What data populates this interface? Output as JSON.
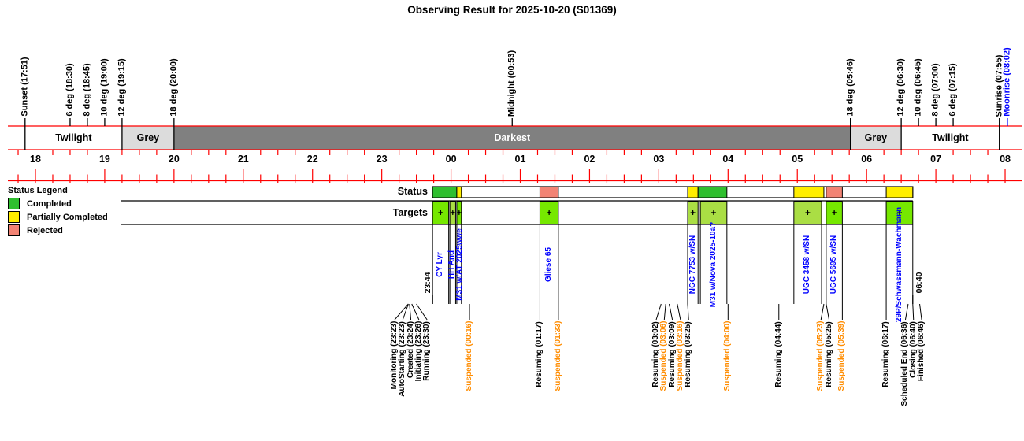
{
  "title": "Observing Result for 2025-10-20 (S01369)",
  "legend": {
    "title": "Status Legend",
    "items": [
      {
        "label": "Completed",
        "kind": "completed"
      },
      {
        "label": "Partially Completed",
        "kind": "partial"
      },
      {
        "label": "Rejected",
        "kind": "rejected"
      }
    ]
  },
  "rows": {
    "status": "Status",
    "targets": "Targets"
  },
  "colors": {
    "axis_red": "#ff0000",
    "band_dark": "#808080",
    "band_grey": "#dcdcdc",
    "band_dark_text": "#ffffff",
    "completed": "#2fbf2f",
    "partial": "#ffee00",
    "rejected": "#f28374",
    "target_bright": "#76e800",
    "target_light": "#aade44",
    "event_info": "#000000",
    "event_warn": "#ff8c00",
    "target_name_blue": "#0000ff",
    "moonrise_blue": "#0000ff"
  },
  "chart_data": {
    "type": "timeline",
    "x_axis": {
      "unit": "hour",
      "start": "17:36",
      "end": "08:14",
      "hour_labels": [
        "18",
        "19",
        "20",
        "21",
        "22",
        "23",
        "00",
        "01",
        "02",
        "03",
        "04",
        "05",
        "06",
        "07",
        "08"
      ]
    },
    "bands": [
      {
        "label": "Twilight",
        "from": "17:36",
        "to": "19:15",
        "shade": "white",
        "label_from": "17:51",
        "label_to": "19:15"
      },
      {
        "label": "Grey",
        "from": "19:15",
        "to": "20:00",
        "shade": "grey"
      },
      {
        "label": "Darkest",
        "from": "20:00",
        "to": "05:46",
        "shade": "dark"
      },
      {
        "label": "Grey",
        "from": "05:46",
        "to": "06:30",
        "shade": "grey"
      },
      {
        "label": "Twilight",
        "from": "06:30",
        "to": "08:14",
        "shade": "white",
        "label_from": "06:30",
        "label_to": "07:55"
      }
    ],
    "sky_markers": [
      {
        "label": "Sunset (17:51)",
        "time": "17:51",
        "reach": "band",
        "color": "black"
      },
      {
        "label": "6 deg (18:30)",
        "time": "18:30",
        "reach": "top",
        "color": "black"
      },
      {
        "label": "8 deg (18:45)",
        "time": "18:45",
        "reach": "top",
        "color": "black"
      },
      {
        "label": "10 deg (19:00)",
        "time": "19:00",
        "reach": "top",
        "color": "black"
      },
      {
        "label": "12 deg (19:15)",
        "time": "19:15",
        "reach": "band",
        "color": "black"
      },
      {
        "label": "18 deg (20:00)",
        "time": "20:00",
        "reach": "band",
        "color": "black"
      },
      {
        "label": "Midnight (00:53)",
        "time": "00:53",
        "reach": "top",
        "color": "black"
      },
      {
        "label": "18 deg (05:46)",
        "time": "05:46",
        "reach": "band",
        "color": "black"
      },
      {
        "label": "12 deg (06:30)",
        "time": "06:30",
        "reach": "band",
        "color": "black"
      },
      {
        "label": "10 deg (06:45)",
        "time": "06:45",
        "reach": "top",
        "color": "black"
      },
      {
        "label": "8 deg (07:00)",
        "time": "07:00",
        "reach": "top",
        "color": "black"
      },
      {
        "label": "6 deg (07:15)",
        "time": "07:15",
        "reach": "top",
        "color": "black"
      },
      {
        "label": "Sunrise (07:55)",
        "time": "07:55",
        "reach": "band",
        "color": "black"
      },
      {
        "label": "Moonrise (08:02)",
        "time": "08:02",
        "reach": "top",
        "color": "blue"
      }
    ],
    "observing_window": {
      "start": "23:44",
      "end": "06:40"
    },
    "status_segments": [
      {
        "kind": "completed",
        "from": "23:44",
        "to": "00:05"
      },
      {
        "kind": "partial",
        "from": "00:05",
        "to": "00:09"
      },
      {
        "kind": "rejected",
        "from": "01:17",
        "to": "01:33"
      },
      {
        "kind": "partial",
        "from": "03:25",
        "to": "03:34"
      },
      {
        "kind": "completed",
        "from": "03:34",
        "to": "03:59"
      },
      {
        "kind": "partial",
        "from": "04:57",
        "to": "05:23"
      },
      {
        "kind": "rejected",
        "from": "05:25",
        "to": "05:39"
      },
      {
        "kind": "partial",
        "from": "06:17",
        "to": "06:40"
      }
    ],
    "targets": [
      {
        "name": "CY Lyr",
        "from": "23:44",
        "to": "23:58",
        "shade": "bright"
      },
      {
        "name": "HH And",
        "from": "23:59",
        "to": "00:04",
        "shade": "light"
      },
      {
        "name": "M31 w/AT 2025wwe",
        "from": "00:05",
        "to": "00:09",
        "shade": "bright"
      },
      {
        "name": "Gliese 65",
        "from": "01:17",
        "to": "01:33",
        "shade": "bright"
      },
      {
        "name": "NGC 7753 w/SN",
        "from": "03:25",
        "to": "03:34",
        "shade": "light"
      },
      {
        "name": "M31 w/Nova 2025-10a?",
        "from": "03:36",
        "to": "03:59",
        "shade": "light"
      },
      {
        "name": "UGC 3458 w/SN",
        "from": "04:57",
        "to": "05:21",
        "shade": "light"
      },
      {
        "name": "UGC 5695 w/SN",
        "from": "05:25",
        "to": "05:39",
        "shade": "bright"
      },
      {
        "name": "29P/Schwassmann-Wachmann",
        "from": "06:17",
        "to": "06:40",
        "shade": "bright"
      }
    ],
    "events": [
      {
        "label": "Monitoring (23:23)",
        "time": "23:23",
        "type": "info"
      },
      {
        "label": "AutoStarting (23:23)",
        "time": "23:23",
        "type": "info"
      },
      {
        "label": "Created (23:24)",
        "time": "23:24",
        "type": "info"
      },
      {
        "label": "Initiating (23:26)",
        "time": "23:26",
        "type": "info"
      },
      {
        "label": "Running (23:30)",
        "time": "23:30",
        "type": "info"
      },
      {
        "label": "Suspended (00:16)",
        "time": "00:16",
        "type": "warn"
      },
      {
        "label": "Resuming (01:17)",
        "time": "01:17",
        "type": "info"
      },
      {
        "label": "Suspended (01:33)",
        "time": "01:33",
        "type": "warn"
      },
      {
        "label": "Resuming (03:02)",
        "time": "03:02",
        "type": "info"
      },
      {
        "label": "Suspended (03:06)",
        "time": "03:06",
        "type": "warn"
      },
      {
        "label": "Resuming (03:09)",
        "time": "03:09",
        "type": "info"
      },
      {
        "label": "Suspended (03:16)",
        "time": "03:16",
        "type": "warn"
      },
      {
        "label": "Resuming (03:25)",
        "time": "03:25",
        "type": "info"
      },
      {
        "label": "Suspended (04:00)",
        "time": "04:00",
        "type": "warn"
      },
      {
        "label": "Resuming (04:44)",
        "time": "04:44",
        "type": "info"
      },
      {
        "label": "Suspended (05:23)",
        "time": "05:23",
        "type": "warn"
      },
      {
        "label": "Resuming (05:25)",
        "time": "05:25",
        "type": "info"
      },
      {
        "label": "Suspended (05:39)",
        "time": "05:39",
        "type": "warn"
      },
      {
        "label": "Resuming (06:17)",
        "time": "06:17",
        "type": "info"
      },
      {
        "label": "Scheduled End (06:36)",
        "time": "06:36",
        "type": "info"
      },
      {
        "label": "Closing (06:40)",
        "time": "06:40",
        "type": "info"
      },
      {
        "label": "Finished (06:46)",
        "time": "06:46",
        "type": "info"
      }
    ]
  }
}
